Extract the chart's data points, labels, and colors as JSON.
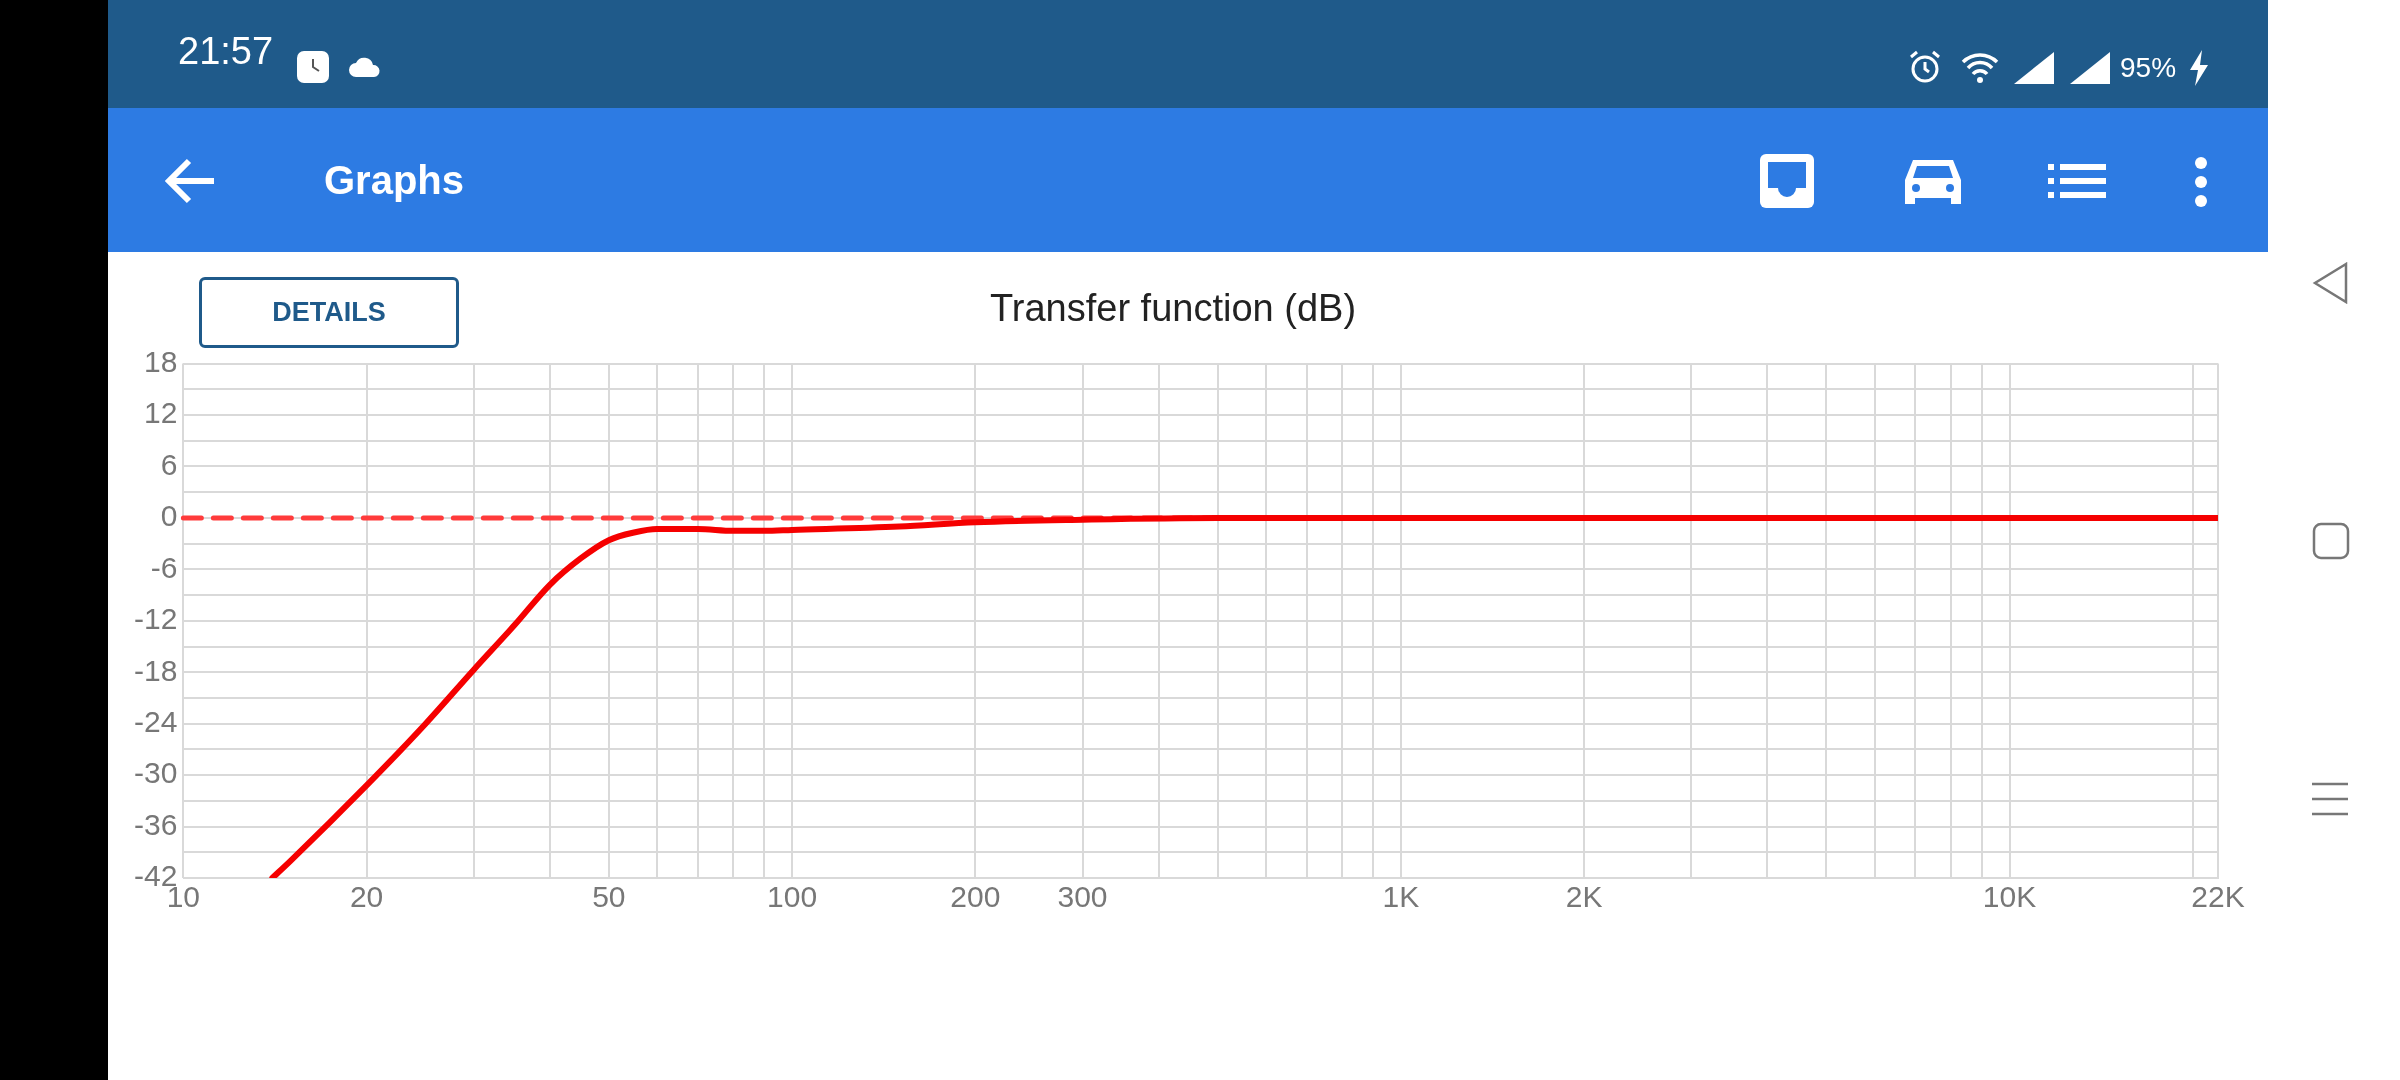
{
  "chart_data": {
    "type": "line",
    "title": "Transfer function (dB)",
    "annotations": [
      "21:57",
      "95%",
      "Graphs",
      "DETAILS"
    ],
    "series": [
      {
        "color": "#f50000",
        "x": [
          14,
          15,
          20,
          25,
          30,
          35,
          40,
          45,
          50,
          55,
          60,
          70,
          80,
          90,
          100,
          150,
          200,
          300,
          500,
          1000,
          22000
        ],
        "values": [
          -42,
          -40,
          -31.2,
          -24,
          -17.7,
          -12.5,
          -7.8,
          -4.7,
          -2.6,
          -1.7,
          -1.3,
          -1.3,
          -1.5,
          -1.5,
          -1.4,
          -1,
          -0.5,
          -0.2,
          0,
          0,
          0
        ]
      }
    ],
    "ref_lines": [
      {
        "axis": "y",
        "value": 0,
        "color": "#ff3b3b",
        "line_style": "dashed"
      }
    ],
    "xlim": [
      10,
      22000
    ],
    "log": "x",
    "xticks": [
      10,
      20,
      {
        "value": 30,
        "label": null
      },
      {
        "value": 40,
        "label": null
      },
      50,
      {
        "value": 60,
        "label": null
      },
      {
        "value": 70,
        "label": null
      },
      {
        "value": 80,
        "label": null
      },
      {
        "value": 90,
        "label": null
      },
      100,
      200,
      300,
      {
        "value": 400,
        "label": null
      },
      {
        "value": 500,
        "label": null
      },
      {
        "value": 600,
        "label": null
      },
      {
        "value": 700,
        "label": null
      },
      {
        "value": 800,
        "label": null
      },
      {
        "value": 900,
        "label": null
      },
      {
        "value": 1000,
        "label": "1K"
      },
      {
        "value": 2000,
        "label": "2K"
      },
      {
        "value": 3000,
        "label": null
      },
      {
        "value": 4000,
        "label": null
      },
      {
        "value": 5000,
        "label": null
      },
      {
        "value": 6000,
        "label": null
      },
      {
        "value": 7000,
        "label": null
      },
      {
        "value": 8000,
        "label": null
      },
      {
        "value": 9000,
        "label": null
      },
      {
        "value": 10000,
        "label": "10K"
      },
      {
        "value": 20000,
        "label": null
      },
      {
        "value": 22000,
        "label": "22K"
      }
    ],
    "ylim": [
      -42,
      18
    ],
    "yticks": [
      -42,
      {
        "value": -39,
        "label": null
      },
      -36,
      {
        "value": -33,
        "label": null
      },
      -30,
      {
        "value": -27,
        "label": null
      },
      -24,
      {
        "value": -21,
        "label": null
      },
      -18,
      {
        "value": -15,
        "label": null
      },
      -12,
      {
        "value": -9,
        "label": null
      },
      -6,
      {
        "value": -3,
        "label": null
      },
      0,
      {
        "value": 3,
        "label": null
      },
      6,
      {
        "value": 9,
        "label": null
      },
      12,
      {
        "value": 15,
        "label": null
      },
      18
    ],
    "grid": true,
    "legend": false,
    "marker": "none"
  }
}
